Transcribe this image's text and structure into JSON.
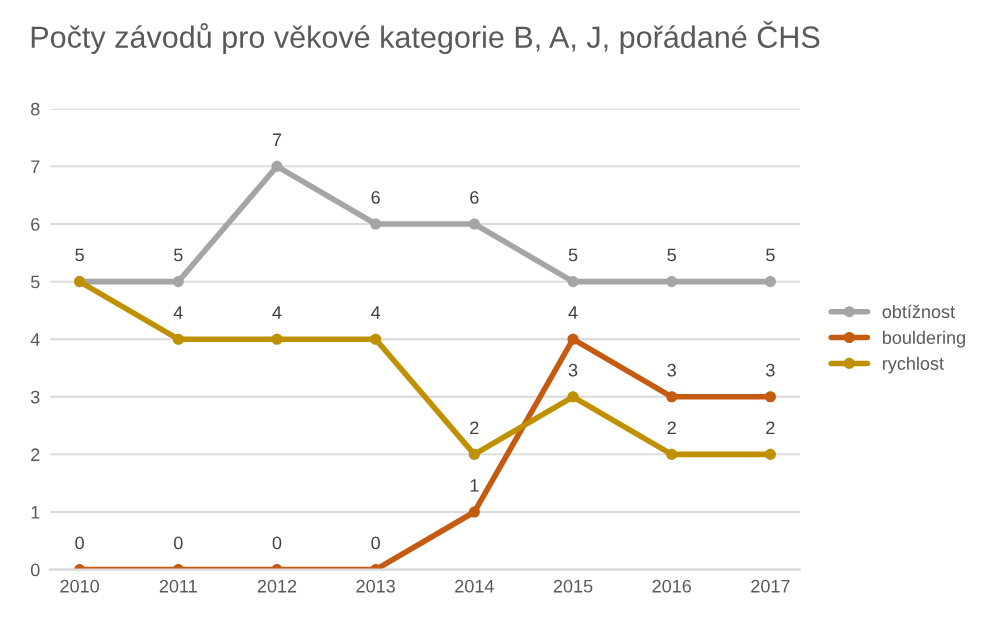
{
  "chart_data": {
    "type": "line",
    "title": "Počty závodů pro věkové kategorie B, A, J, pořádané ČHS",
    "categories": [
      "2010",
      "2011",
      "2012",
      "2013",
      "2014",
      "2015",
      "2016",
      "2017"
    ],
    "series": [
      {
        "name": "obtížnost",
        "color": "#a5a5a5",
        "values": [
          5,
          5,
          7,
          6,
          6,
          5,
          5,
          5
        ],
        "value_labels": [
          "5",
          "5",
          "7",
          "6",
          "6",
          "5",
          "5",
          "5"
        ]
      },
      {
        "name": "bouldering",
        "color": "#c55a11",
        "values": [
          0,
          0,
          0,
          0,
          1,
          4,
          3,
          3
        ],
        "value_labels": [
          "0",
          "0",
          "0",
          "0",
          "1",
          "4",
          "3",
          "3"
        ]
      },
      {
        "name": "rychlost",
        "color": "#bf9000",
        "values": [
          5,
          4,
          4,
          4,
          2,
          3,
          2,
          2
        ],
        "value_labels": [
          null,
          "4",
          "4",
          "4",
          "2",
          "3",
          "2",
          "2"
        ]
      }
    ],
    "ylim": [
      0,
      8
    ],
    "yticks": [
      0,
      1,
      2,
      3,
      4,
      5,
      6,
      7,
      8
    ],
    "grid": "y",
    "legend": "right",
    "marker": "circle",
    "line_style": "solid"
  }
}
